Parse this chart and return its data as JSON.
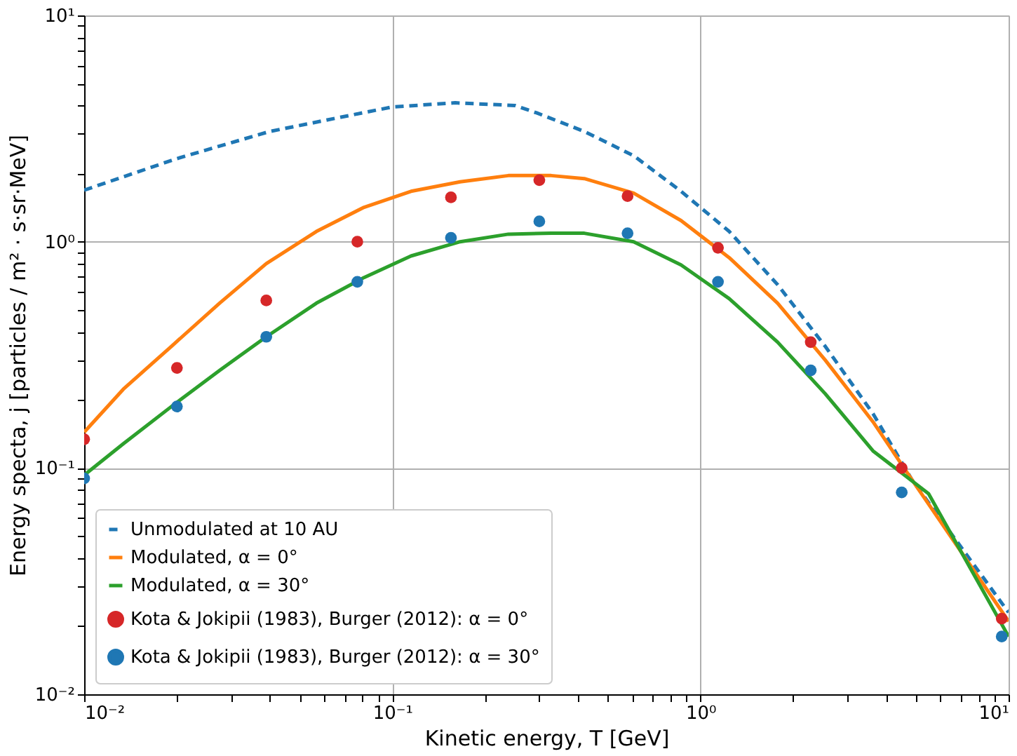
{
  "chart_data": {
    "type": "line",
    "xlabel": "Kinetic energy, T [GeV]",
    "ylabel": "Energy specta, j [particles / m² · s·sr·MeV]",
    "log": "xy",
    "grid": true,
    "legend": "bottom left",
    "xlim": [
      0.01,
      10
    ],
    "ylim": [
      0.01,
      10
    ],
    "xticks": [
      {
        "value": 0.01,
        "label": "10⁻²"
      },
      {
        "value": 0.02,
        "label": null
      },
      {
        "value": 0.03,
        "label": null
      },
      {
        "value": 0.04,
        "label": null
      },
      {
        "value": 0.05,
        "label": null
      },
      {
        "value": 0.06,
        "label": null
      },
      {
        "value": 0.07,
        "label": null
      },
      {
        "value": 0.08,
        "label": null
      },
      {
        "value": 0.09,
        "label": null
      },
      {
        "value": 0.1,
        "label": "10⁻¹"
      },
      {
        "value": 0.2,
        "label": null
      },
      {
        "value": 0.3,
        "label": null
      },
      {
        "value": 0.4,
        "label": null
      },
      {
        "value": 0.5,
        "label": null
      },
      {
        "value": 0.6,
        "label": null
      },
      {
        "value": 0.7,
        "label": null
      },
      {
        "value": 0.8,
        "label": null
      },
      {
        "value": 0.9,
        "label": null
      },
      {
        "value": 1,
        "label": "10⁰"
      },
      {
        "value": 2,
        "label": null
      },
      {
        "value": 3,
        "label": null
      },
      {
        "value": 4,
        "label": null
      },
      {
        "value": 5,
        "label": null
      },
      {
        "value": 6,
        "label": null
      },
      {
        "value": 7,
        "label": null
      },
      {
        "value": 8,
        "label": null
      },
      {
        "value": 9,
        "label": null
      },
      {
        "value": 10,
        "label": "10¹"
      }
    ],
    "yticks": [
      {
        "value": 0.01,
        "label": "10⁻²"
      },
      {
        "value": 0.02,
        "label": null
      },
      {
        "value": 0.03,
        "label": null
      },
      {
        "value": 0.04,
        "label": null
      },
      {
        "value": 0.05,
        "label": null
      },
      {
        "value": 0.06,
        "label": null
      },
      {
        "value": 0.07,
        "label": null
      },
      {
        "value": 0.08,
        "label": null
      },
      {
        "value": 0.09,
        "label": null
      },
      {
        "value": 0.1,
        "label": "10⁻¹"
      },
      {
        "value": 0.2,
        "label": null
      },
      {
        "value": 0.3,
        "label": null
      },
      {
        "value": 0.4,
        "label": null
      },
      {
        "value": 0.5,
        "label": null
      },
      {
        "value": 0.6,
        "label": null
      },
      {
        "value": 0.7,
        "label": null
      },
      {
        "value": 0.8,
        "label": null
      },
      {
        "value": 0.9,
        "label": null
      },
      {
        "value": 1,
        "label": "10⁰"
      },
      {
        "value": 2,
        "label": null
      },
      {
        "value": 3,
        "label": null
      },
      {
        "value": 4,
        "label": null
      },
      {
        "value": 5,
        "label": null
      },
      {
        "value": 6,
        "label": null
      },
      {
        "value": 7,
        "label": null
      },
      {
        "value": 8,
        "label": null
      },
      {
        "value": 9,
        "label": null
      },
      {
        "value": 10,
        "label": "10¹"
      }
    ],
    "series": [
      {
        "name": "Unmodulated at 10 AU",
        "color": "#1f77b4",
        "line_style": "dashed",
        "x": [
          0.01,
          0.02,
          0.04,
          0.08,
          0.1,
          0.16,
          0.25,
          0.294,
          0.42,
          0.607,
          0.865,
          1.24,
          1.78,
          2.54,
          3.63,
          4.85,
          10
        ],
        "values": [
          1.69,
          2.33,
          3.07,
          3.71,
          3.94,
          4.11,
          4.0,
          3.71,
          3.07,
          2.4,
          1.67,
          1.11,
          0.646,
          0.345,
          0.174,
          0.089,
          0.023
        ]
      },
      {
        "name": "Modulated, α = 0°",
        "color": "#ff7f0e",
        "line_style": "solid",
        "x": [
          0.01,
          0.0134,
          0.0192,
          0.0275,
          0.039,
          0.0567,
          0.081,
          0.115,
          0.166,
          0.238,
          0.328,
          0.42,
          0.607,
          0.865,
          1.24,
          1.78,
          2.54,
          3.63,
          4.85,
          10
        ],
        "values": [
          0.144,
          0.223,
          0.345,
          0.535,
          0.8,
          1.11,
          1.42,
          1.67,
          1.84,
          1.96,
          1.96,
          1.9,
          1.64,
          1.24,
          0.85,
          0.535,
          0.3,
          0.16,
          0.089,
          0.021
        ]
      },
      {
        "name": "Modulated, α = 30°",
        "color": "#2ca02c",
        "line_style": "solid",
        "x": [
          0.01,
          0.0134,
          0.0192,
          0.0275,
          0.039,
          0.0567,
          0.081,
          0.115,
          0.166,
          0.238,
          0.328,
          0.42,
          0.607,
          0.865,
          1.24,
          1.78,
          2.54,
          3.63,
          5.5,
          10
        ],
        "values": [
          0.093,
          0.128,
          0.187,
          0.27,
          0.38,
          0.535,
          0.695,
          0.865,
          1.0,
          1.08,
          1.09,
          1.09,
          1.0,
          0.79,
          0.56,
          0.36,
          0.213,
          0.119,
          0.077,
          0.018
        ]
      },
      {
        "name": "Kota & Jokipii (1983), Burger (2012): α = 0°",
        "color": "#d62728",
        "type": "scatter",
        "marker": "circle",
        "x": [
          0.01,
          0.02,
          0.039,
          0.077,
          0.155,
          0.3,
          0.58,
          1.14,
          2.28,
          4.5,
          9.5
        ],
        "values": [
          0.134,
          0.277,
          0.55,
          1.0,
          1.57,
          1.87,
          1.59,
          0.94,
          0.36,
          0.1,
          0.0216
        ]
      },
      {
        "name": "Kota & Jokipii (1983), Burger (2012): α = 30°",
        "color": "#1f77b4",
        "type": "scatter",
        "marker": "circle",
        "x": [
          0.01,
          0.02,
          0.039,
          0.077,
          0.155,
          0.3,
          0.58,
          1.14,
          2.28,
          4.5,
          9.5
        ],
        "values": [
          0.09,
          0.187,
          0.38,
          0.665,
          1.04,
          1.23,
          1.09,
          0.665,
          0.27,
          0.078,
          0.018
        ]
      }
    ]
  }
}
